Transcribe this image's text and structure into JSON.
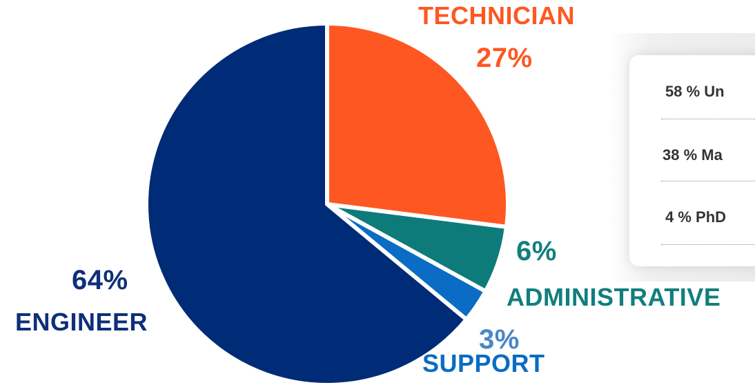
{
  "chart_data": {
    "type": "pie",
    "slices": [
      {
        "label": "TECHNICIAN",
        "value": 27,
        "percent_text": "27%",
        "color": "#FF5722"
      },
      {
        "label": "ADMINISTRATIVE",
        "value": 6,
        "percent_text": "6%",
        "color": "#0E7B7B"
      },
      {
        "label": "SUPPORT",
        "value": 3,
        "percent_text": "3%",
        "color": "#0A6CC4"
      },
      {
        "label": "ENGINEER",
        "value": 64,
        "percent_text": "64%",
        "color": "#002B76"
      }
    ],
    "label_colors": {
      "TECHNICIAN": "#FF5722",
      "ADMINISTRATIVE": "#127E7E",
      "SUPPORT": "#0A6CC4",
      "SUPPORT_percent": "#4A86C8",
      "ENGINEER": "#0E2F7A"
    }
  },
  "education_card": {
    "rows": [
      "58 % Un",
      "38 % Ma",
      "4 % PhD"
    ]
  }
}
